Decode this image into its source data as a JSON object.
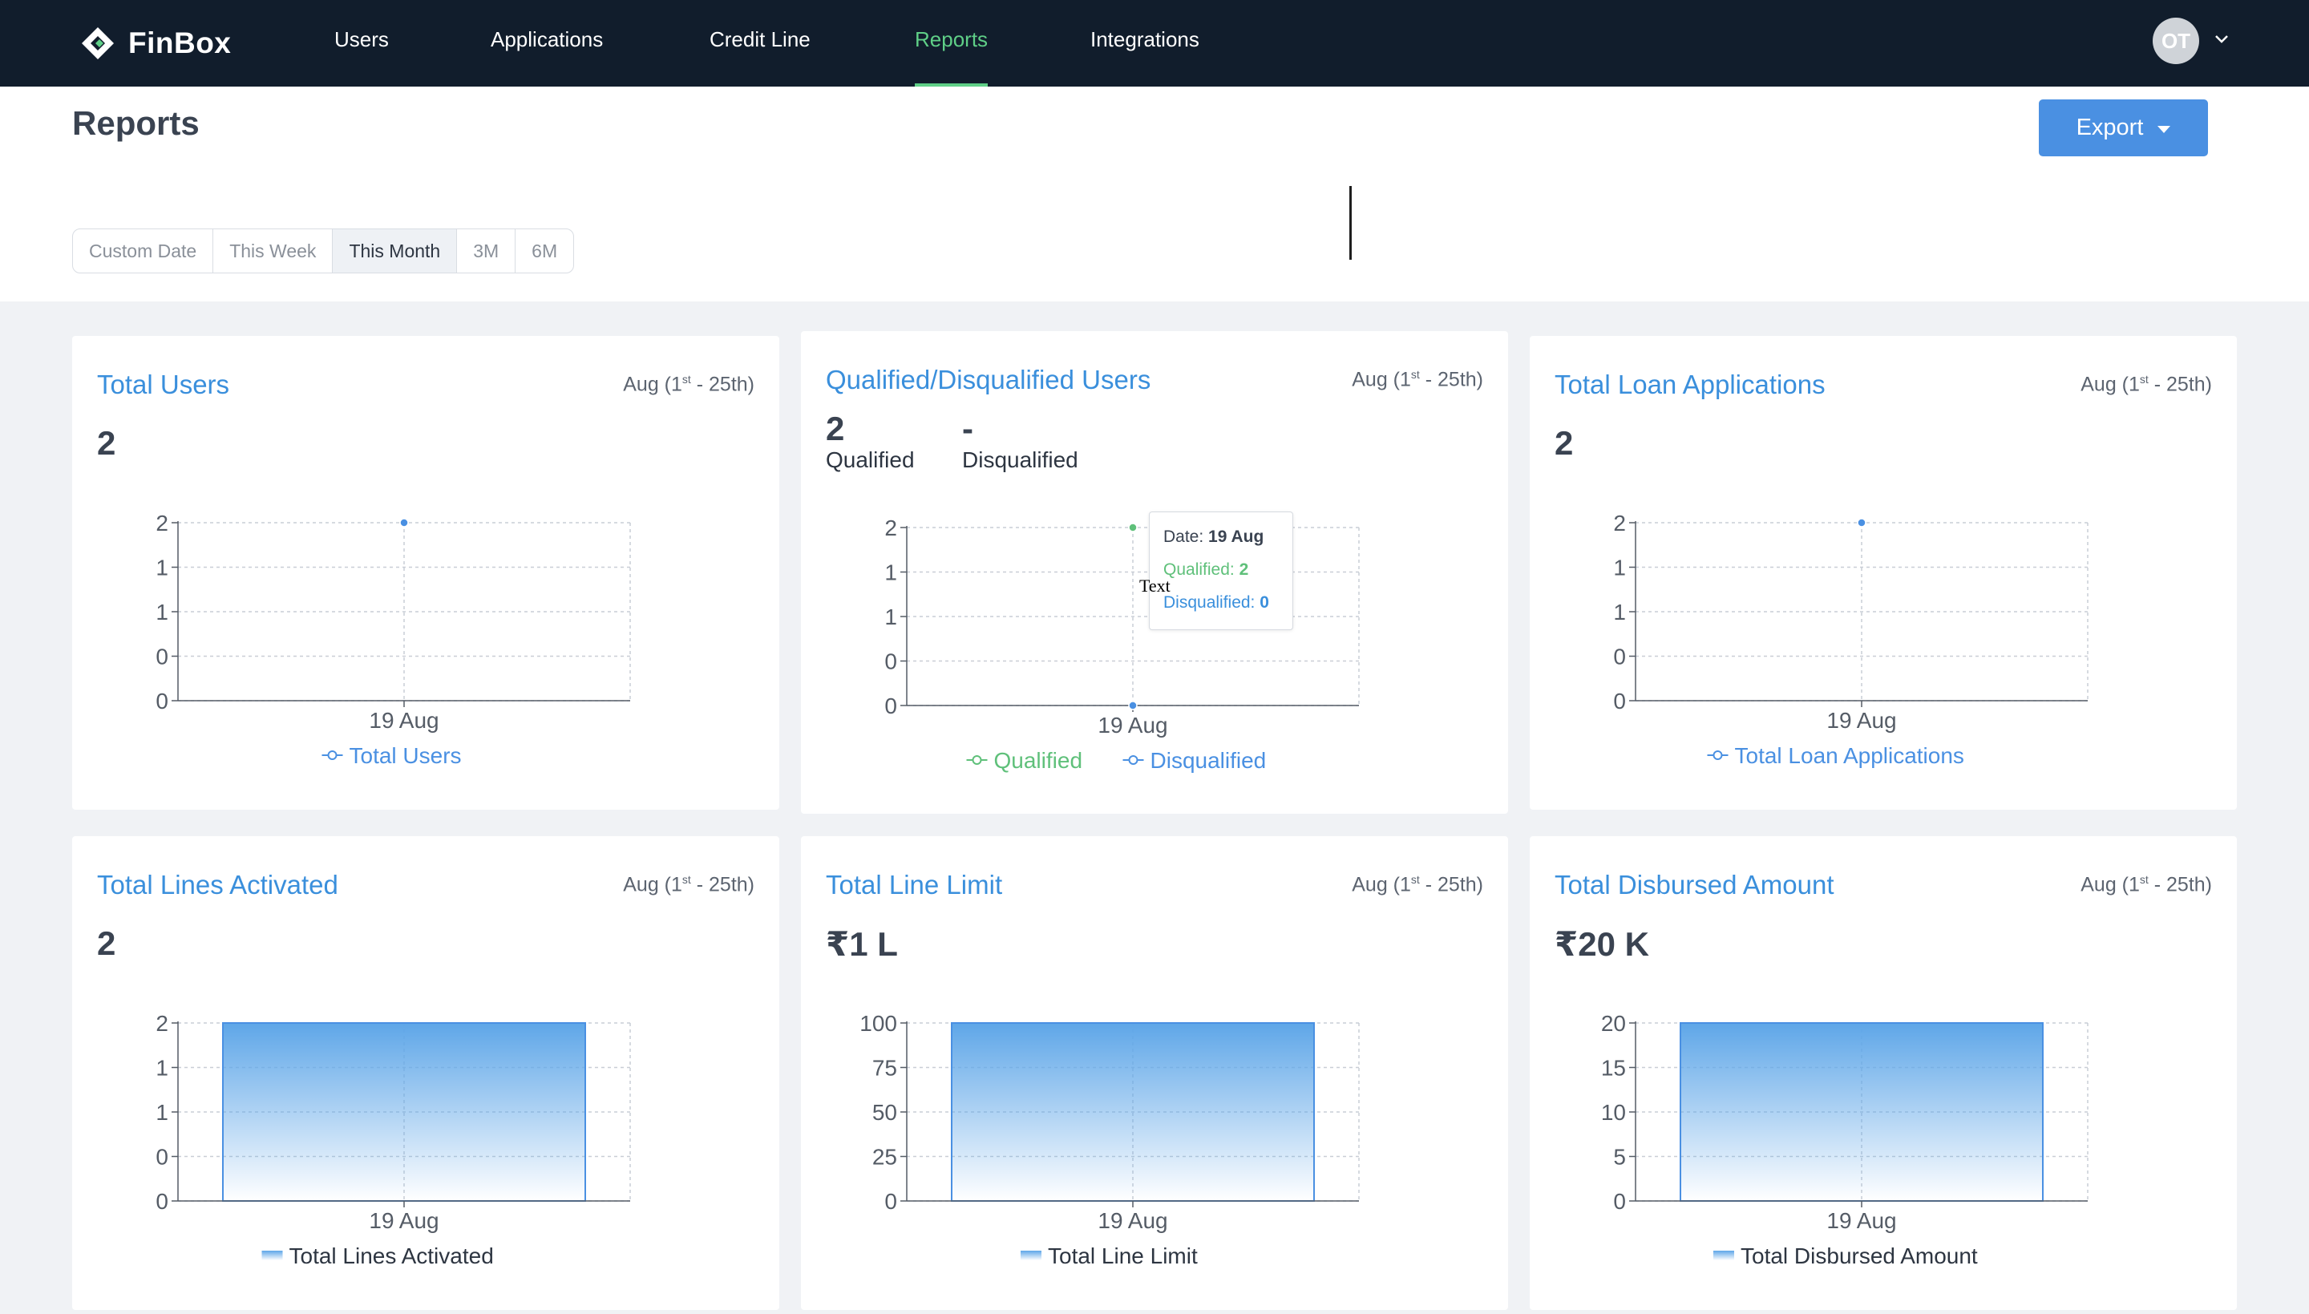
{
  "app": {
    "name": "FinBox"
  },
  "nav": {
    "items": [
      {
        "label": "Users",
        "active": false
      },
      {
        "label": "Applications",
        "active": false
      },
      {
        "label": "Credit Line",
        "active": false
      },
      {
        "label": "Reports",
        "active": true
      },
      {
        "label": "Integrations",
        "active": false
      }
    ],
    "avatar_initials": "OT",
    "avatar_menu_icon": "chevron-down-icon"
  },
  "header": {
    "title": "Reports",
    "export_label": "Export",
    "export_icon": "caret-down-icon"
  },
  "date_range": {
    "options": [
      "Custom Date",
      "This Week",
      "This Month",
      "3M",
      "6M"
    ],
    "selected": "This Month"
  },
  "date_prefix": "Aug (1",
  "date_sup": "st",
  "date_suffix": " - 25th)",
  "colors": {
    "nav_bg": "#111d2c",
    "active_nav": "#5fcf87",
    "accent": "#4a90e2",
    "title_blue": "#3a8fdc",
    "qualified_green": "#5fc07a"
  },
  "cards": {
    "total_users": {
      "title": "Total Users",
      "value": "2"
    },
    "qualified": {
      "title": "Qualified/Disqualified Users",
      "qualified_value": "2",
      "qualified_label": "Qualified",
      "disqualified_value": "-",
      "disqualified_label": "Disqualified",
      "tooltip": {
        "date_label": "Date:",
        "date_value": "19 Aug",
        "qualified_label": "Qualified:",
        "qualified_value": "2",
        "disqualified_label": "Disqualified:",
        "disqualified_value": "0"
      },
      "stray_text": "Text"
    },
    "total_loan_apps": {
      "title": "Total Loan Applications",
      "value": "2"
    },
    "lines_activated": {
      "title": "Total Lines Activated",
      "value": "2"
    },
    "line_limit": {
      "title": "Total Line Limit",
      "value": "₹1 L"
    },
    "disbursed": {
      "title": "Total Disbursed Amount",
      "value": "₹20 K"
    }
  },
  "chart_data": [
    {
      "id": "total_users",
      "type": "line",
      "x": [
        "19 Aug"
      ],
      "ylim": [
        0,
        2
      ],
      "yticks": [
        "0",
        "0",
        "1",
        "1",
        "2"
      ],
      "grid": true,
      "legend_position": "bottom",
      "series": [
        {
          "name": "Total Users",
          "values": [
            2
          ],
          "color": "#4a90e2"
        }
      ]
    },
    {
      "id": "qualified",
      "type": "line",
      "x": [
        "19 Aug"
      ],
      "ylim": [
        0,
        2
      ],
      "yticks": [
        "0",
        "0",
        "1",
        "1",
        "2"
      ],
      "grid": true,
      "legend_position": "bottom",
      "series": [
        {
          "name": "Qualified",
          "values": [
            2
          ],
          "color": "#5fc07a"
        },
        {
          "name": "Disqualified",
          "values": [
            0
          ],
          "color": "#4a90e2"
        }
      ]
    },
    {
      "id": "total_loan_apps",
      "type": "line",
      "x": [
        "19 Aug"
      ],
      "ylim": [
        0,
        2
      ],
      "yticks": [
        "0",
        "0",
        "1",
        "1",
        "2"
      ],
      "grid": true,
      "legend_position": "bottom",
      "series": [
        {
          "name": "Total Loan Applications",
          "values": [
            2
          ],
          "color": "#4a90e2"
        }
      ]
    },
    {
      "id": "lines_activated",
      "type": "bar",
      "categories": [
        "19 Aug"
      ],
      "ylim": [
        0,
        2
      ],
      "yticks": [
        "0",
        "0",
        "1",
        "1",
        "2"
      ],
      "grid": true,
      "legend_position": "bottom",
      "series": [
        {
          "name": "Total Lines Activated",
          "values": [
            2
          ],
          "color": "#4a90e2"
        }
      ]
    },
    {
      "id": "line_limit",
      "type": "bar",
      "categories": [
        "19 Aug"
      ],
      "ylim": [
        0,
        100
      ],
      "yticks": [
        "0",
        "25",
        "50",
        "75",
        "100"
      ],
      "grid": true,
      "legend_position": "bottom",
      "series": [
        {
          "name": "Total Line Limit",
          "values": [
            100
          ],
          "color": "#4a90e2"
        }
      ]
    },
    {
      "id": "disbursed",
      "type": "bar",
      "categories": [
        "19 Aug"
      ],
      "ylim": [
        0,
        20
      ],
      "yticks": [
        "0",
        "5",
        "10",
        "15",
        "20"
      ],
      "grid": true,
      "legend_position": "bottom",
      "series": [
        {
          "name": "Total Disbursed Amount",
          "values": [
            20
          ],
          "color": "#4a90e2"
        }
      ]
    }
  ]
}
